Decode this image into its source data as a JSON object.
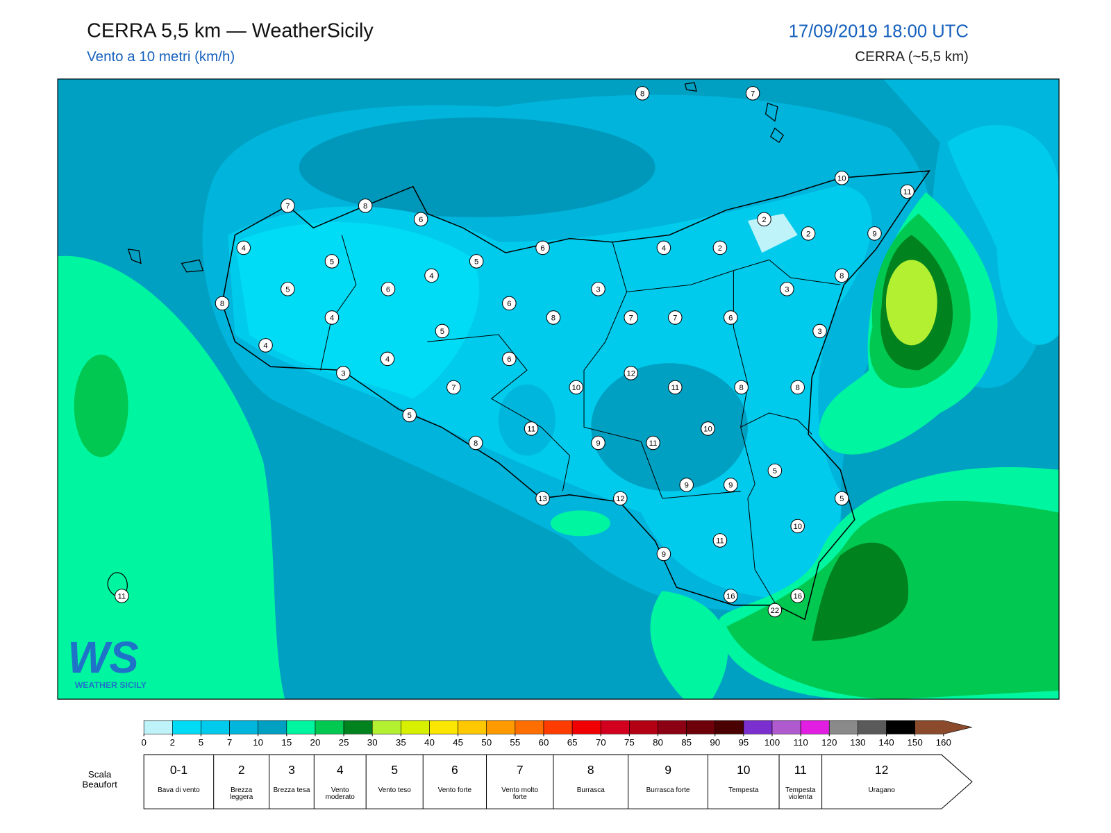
{
  "header": {
    "title": "CERRA 5,5 km — WeatherSicily",
    "subtitle": "Vento a 10 metri (km/h)",
    "datetime": "17/09/2019 18:00 UTC",
    "model": "CERRA (~5,5 km)"
  },
  "stations": [
    8,
    7,
    7,
    8,
    6,
    10,
    11,
    4,
    5,
    5,
    6,
    4,
    2,
    2,
    2,
    9,
    4,
    5,
    6,
    3,
    3,
    8,
    8,
    4,
    6,
    8,
    7,
    7,
    6,
    5,
    3,
    4,
    4,
    6,
    3,
    12,
    7,
    10,
    11,
    8,
    8,
    5,
    11,
    10,
    8,
    9,
    11,
    5,
    9,
    9,
    13,
    12,
    5,
    10,
    11,
    9,
    11,
    16,
    16,
    22
  ],
  "colorbar": {
    "ticks": [
      0,
      2,
      5,
      7,
      10,
      15,
      20,
      25,
      30,
      35,
      40,
      45,
      50,
      55,
      60,
      65,
      70,
      75,
      80,
      85,
      90,
      95,
      100,
      110,
      120,
      130,
      140,
      150,
      160
    ],
    "colors": [
      "#bff3fa",
      "#00dcf5",
      "#00cbec",
      "#00b6dc",
      "#00a0c2",
      "#00f5a0",
      "#00c850",
      "#00821e",
      "#b4f032",
      "#d7f000",
      "#fae600",
      "#ffc800",
      "#ff9b00",
      "#ff6e00",
      "#ff3c00",
      "#f00000",
      "#d2001e",
      "#b40014",
      "#8c0014",
      "#6e000a",
      "#4a0000",
      "#7b2fcf",
      "#b05ad0",
      "#e11ee1",
      "#8a8a8a",
      "#5a5a5a",
      "#000000",
      "#8b4a2b"
    ]
  },
  "beaufort": {
    "label": "Scala Beaufort",
    "scales": [
      {
        "force": "0-1",
        "description": "Bava di vento"
      },
      {
        "force": 2,
        "description": "Brezza leggera"
      },
      {
        "force": 3,
        "description": "Brezza tesa"
      },
      {
        "force": 4,
        "description": "Vento moderato"
      },
      {
        "force": 5,
        "description": "Vento teso"
      },
      {
        "force": 6,
        "description": "Vento forte"
      },
      {
        "force": 7,
        "description": "Vento molto forte"
      },
      {
        "force": 8,
        "description": "Burrasca"
      },
      {
        "force": 9,
        "description": "Burrasca forte"
      },
      {
        "force": 10,
        "description": "Tempesta"
      },
      {
        "force": 11,
        "description": "Tempesta violenta"
      },
      {
        "force": 12,
        "description": "Uragano"
      }
    ]
  },
  "logo": {
    "mark": "WS",
    "name": "WEATHER SICILY"
  }
}
